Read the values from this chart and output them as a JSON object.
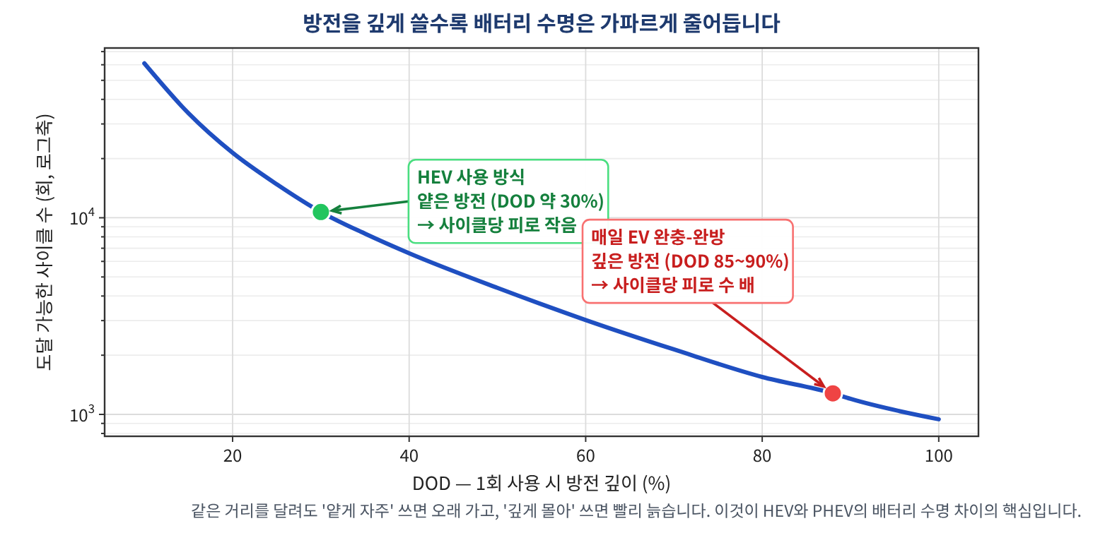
{
  "chart_data": {
    "type": "line",
    "title": "방전을 깊게 쓸수록 배터리 수명은 가파르게 줄어듭니다",
    "xlabel": "DOD — 1회 사용 시 방전 깊이 (%)",
    "ylabel": "도달 가능한 사이클 수 (회, 로그축)",
    "series": [
      {
        "color": "#1f4fc1",
        "x": [
          10,
          15,
          20,
          25,
          30,
          35,
          40,
          50,
          60,
          70,
          80,
          88,
          90,
          100
        ],
        "values": [
          61000,
          34000,
          21400,
          14800,
          10700,
          8300,
          6600,
          4400,
          3020,
          2140,
          1550,
          1280,
          1200,
          945
        ]
      },
      {
        "type": "scatter",
        "marker": "circle",
        "color": "#22c55e",
        "x": [
          30
        ],
        "values": [
          10700
        ]
      },
      {
        "type": "scatter",
        "marker": "circle",
        "color": "#ef4444",
        "x": [
          88
        ],
        "values": [
          1280
        ]
      }
    ],
    "annotations": [
      {
        "text": "HEV 사용 방식\n얕은 방전 (DOD 약 30%)\n→ 사이클당 피로 작음",
        "x": 30,
        "y": 10700
      },
      {
        "text": "매일 EV 완충-완방\n깊은 방전 (DOD 85~90%)\n→ 사이클당 피로 수 배",
        "x": 88,
        "y": 1280
      },
      "같은 거리를 달려도 '얕게 자주' 쓰면 오래 가고, '깊게 몰아' 쓰면 빨리 늙습니다. 이것이 HEV와 PHEV의 배터리 수명 차이의 핵심입니다."
    ],
    "xlim": [
      5.5,
      104.5
    ],
    "xticks": [
      20,
      40,
      60,
      80,
      100
    ],
    "ylim": [
      774,
      73000
    ],
    "yticks": [
      {
        "value": 1000,
        "label": "10$^{3}$"
      },
      {
        "value": 10000,
        "label": "10$^{4}$"
      }
    ],
    "log": "y",
    "grid": true,
    "line_style": "solid"
  }
}
